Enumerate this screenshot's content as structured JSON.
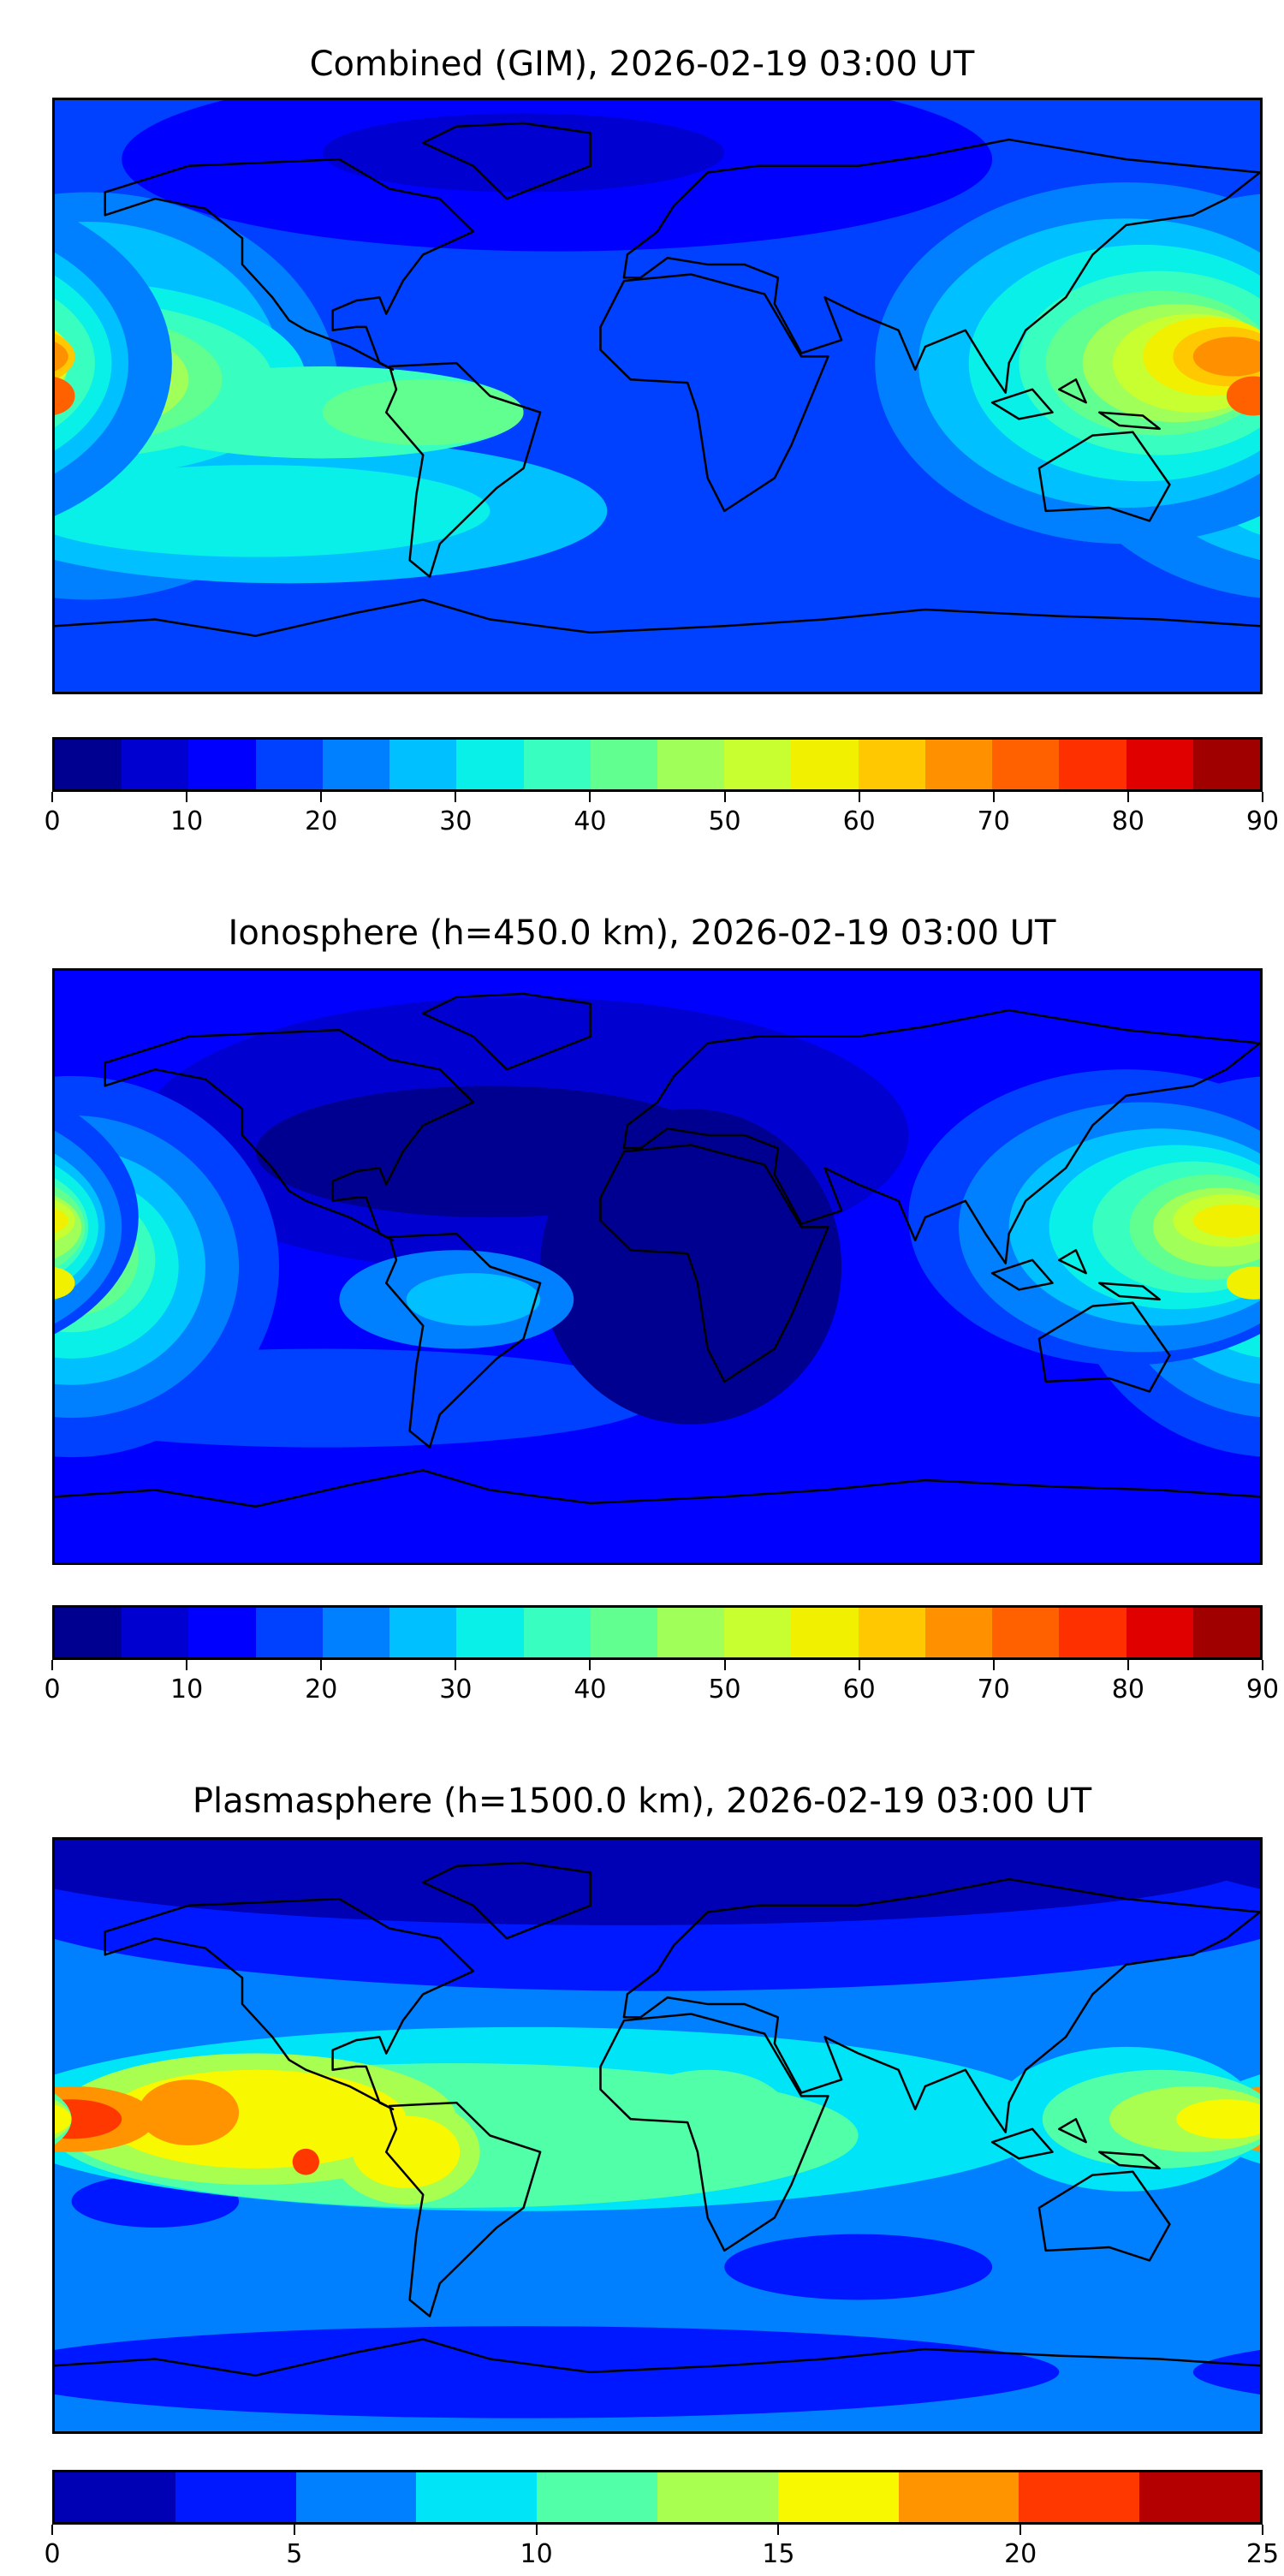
{
  "chart_data": [
    {
      "type": "heatmap",
      "title": "Combined (GIM), 2026-02-19 03:00 UT",
      "xlim": [
        -180,
        180
      ],
      "ylim": [
        -90,
        90
      ],
      "colormap": "jet",
      "levels": [
        0,
        5,
        10,
        15,
        20,
        25,
        30,
        35,
        40,
        45,
        50,
        55,
        60,
        65,
        70,
        75,
        80,
        85,
        90
      ],
      "level_colors": [
        "#000090",
        "#0000d0",
        "#0000ff",
        "#0040ff",
        "#0080ff",
        "#00c0ff",
        "#08f0e8",
        "#38ffc0",
        "#60ff90",
        "#a0ff58",
        "#c8ff30",
        "#f0f000",
        "#ffc800",
        "#ff9000",
        "#ff6000",
        "#ff3000",
        "#e00000",
        "#a00000"
      ],
      "colorbar_ticks": [
        "0",
        "10",
        "20",
        "30",
        "40",
        "50",
        "60",
        "70",
        "80",
        "90"
      ],
      "colorbar_range": [
        0,
        90
      ],
      "base_value": 17.5,
      "contour_blobs_lon_lat_rlon_rlat_value": [
        [
          -30,
          72,
          130,
          28,
          12.5
        ],
        [
          -40,
          74,
          60,
          12,
          7.5
        ],
        [
          -170,
          0,
          75,
          62,
          22.5
        ],
        [
          -170,
          5,
          58,
          48,
          27.5
        ],
        [
          -110,
          -35,
          95,
          22,
          27.5
        ],
        [
          -120,
          -35,
          70,
          14,
          32.5
        ],
        [
          -175,
          5,
          70,
          30,
          32.5
        ],
        [
          -175,
          5,
          60,
          24,
          37.5
        ],
        [
          -100,
          -5,
          60,
          14,
          37.5
        ],
        [
          -175,
          5,
          45,
          20,
          42.5
        ],
        [
          -70,
          -5,
          30,
          10,
          42.5
        ],
        [
          -175,
          5,
          35,
          17,
          47.5
        ],
        [
          -175,
          5,
          30,
          15,
          52.5
        ],
        [
          -175,
          6,
          25,
          13,
          57.5
        ],
        [
          -178,
          6,
          20,
          11,
          62.5
        ],
        [
          -178,
          6,
          15,
          9,
          67.5
        ],
        [
          -180,
          12,
          10,
          5,
          72.5
        ],
        [
          -180,
          0,
          10,
          4,
          72.5
        ],
        [
          140,
          10,
          75,
          55,
          22.5
        ],
        [
          140,
          10,
          62,
          44,
          27.5
        ],
        [
          145,
          10,
          52,
          36,
          32.5
        ],
        [
          150,
          10,
          42,
          28,
          37.5
        ],
        [
          150,
          10,
          34,
          22,
          42.5
        ],
        [
          155,
          10,
          28,
          18,
          47.5
        ],
        [
          160,
          10,
          24,
          15,
          52.5
        ],
        [
          165,
          12,
          20,
          12,
          57.5
        ],
        [
          170,
          12,
          16,
          9,
          62.5
        ],
        [
          172,
          12,
          12,
          6,
          67.5
        ],
        [
          178,
          0,
          8,
          6,
          72.5
        ]
      ]
    },
    {
      "type": "heatmap",
      "title": "Ionosphere  (h=450.0 km), 2026-02-19 03:00 UT",
      "xlim": [
        -180,
        180
      ],
      "ylim": [
        -90,
        90
      ],
      "colormap": "jet",
      "levels": [
        0,
        5,
        10,
        15,
        20,
        25,
        30,
        35,
        40,
        45,
        50,
        55,
        60,
        65,
        70,
        75,
        80,
        85,
        90
      ],
      "level_colors": [
        "#000090",
        "#0000d0",
        "#0000ff",
        "#0040ff",
        "#0080ff",
        "#00c0ff",
        "#08f0e8",
        "#38ffc0",
        "#60ff90",
        "#a0ff58",
        "#c8ff30",
        "#f0f000",
        "#ffc800",
        "#ff9000",
        "#ff6000",
        "#ff3000",
        "#e00000",
        "#a00000"
      ],
      "colorbar_ticks": [
        "0",
        "10",
        "20",
        "30",
        "40",
        "50",
        "60",
        "70",
        "80",
        "90"
      ],
      "colorbar_range": [
        0,
        90
      ],
      "base_value": 12.5,
      "contour_blobs_lon_lat_rlon_rlat_value": [
        [
          -100,
          -40,
          100,
          15,
          17.5
        ],
        [
          -40,
          40,
          115,
          42,
          7.5
        ],
        [
          10,
          0,
          45,
          48,
          2.5
        ],
        [
          -50,
          35,
          70,
          20,
          2.5
        ],
        [
          -175,
          0,
          62,
          58,
          17.5
        ],
        [
          -175,
          0,
          50,
          46,
          22.5
        ],
        [
          -175,
          0,
          40,
          36,
          27.5
        ],
        [
          -175,
          0,
          32,
          28,
          32.5
        ],
        [
          -175,
          2,
          25,
          22,
          37.5
        ],
        [
          -175,
          3,
          20,
          18,
          42.5
        ],
        [
          -175,
          5,
          15,
          15,
          47.5
        ],
        [
          -178,
          5,
          10,
          12,
          52.5
        ],
        [
          -180,
          15,
          6,
          5,
          57.5
        ],
        [
          -180,
          -5,
          6,
          5,
          57.5
        ],
        [
          -60,
          -10,
          35,
          15,
          22.5
        ],
        [
          -55,
          -10,
          20,
          8,
          27.5
        ],
        [
          140,
          15,
          65,
          45,
          17.5
        ],
        [
          145,
          12,
          55,
          38,
          22.5
        ],
        [
          150,
          12,
          45,
          30,
          27.5
        ],
        [
          155,
          12,
          38,
          25,
          32.5
        ],
        [
          160,
          12,
          30,
          20,
          37.5
        ],
        [
          165,
          12,
          24,
          16,
          42.5
        ],
        [
          168,
          12,
          20,
          12,
          47.5
        ],
        [
          170,
          14,
          16,
          8,
          52.5
        ],
        [
          172,
          14,
          12,
          5,
          57.5
        ],
        [
          178,
          -5,
          8,
          5,
          57.5
        ]
      ]
    },
    {
      "type": "heatmap",
      "title": "Plasmasphere (h=1500.0 km), 2026-02-19 03:00 UT",
      "xlim": [
        -180,
        180
      ],
      "ylim": [
        -90,
        90
      ],
      "colormap": "jet",
      "levels": [
        0,
        2.5,
        5,
        7.5,
        10,
        12.5,
        15,
        17.5,
        20,
        22.5,
        25
      ],
      "level_colors": [
        "#0000b4",
        "#0018ff",
        "#0080ff",
        "#00e4f8",
        "#50ffa8",
        "#a8ff50",
        "#f8f800",
        "#ff9400",
        "#ff3800",
        "#b40000"
      ],
      "colorbar_ticks": [
        "0",
        "5",
        "10",
        "15",
        "20",
        "25"
      ],
      "colorbar_range": [
        0,
        25
      ],
      "base_value": 6.25,
      "contour_blobs_lon_lat_rlon_rlat_value": [
        [
          0,
          72,
          200,
          28,
          3.75
        ],
        [
          -10,
          84,
          190,
          20,
          1.25
        ],
        [
          -150,
          -20,
          25,
          8,
          3.75
        ],
        [
          60,
          -40,
          40,
          10,
          3.75
        ],
        [
          -40,
          -72,
          160,
          14,
          3.75
        ],
        [
          -40,
          5,
          160,
          28,
          8.75
        ],
        [
          140,
          5,
          40,
          22,
          8.75
        ],
        [
          -60,
          0,
          120,
          22,
          11.25
        ],
        [
          15,
          5,
          25,
          15,
          11.25
        ],
        [
          -120,
          5,
          60,
          20,
          13.75
        ],
        [
          -75,
          -5,
          22,
          16,
          13.75
        ],
        [
          -120,
          5,
          45,
          15,
          16.25
        ],
        [
          -75,
          -5,
          16,
          11,
          16.25
        ],
        [
          -175,
          5,
          25,
          10,
          18.75
        ],
        [
          -140,
          7,
          15,
          10,
          18.75
        ],
        [
          -175,
          5,
          15,
          6,
          21.25
        ],
        [
          -105,
          -8,
          4,
          4,
          21.25
        ],
        [
          150,
          5,
          35,
          15,
          11.25
        ],
        [
          160,
          5,
          25,
          10,
          13.75
        ],
        [
          170,
          5,
          15,
          6,
          16.25
        ]
      ]
    }
  ]
}
